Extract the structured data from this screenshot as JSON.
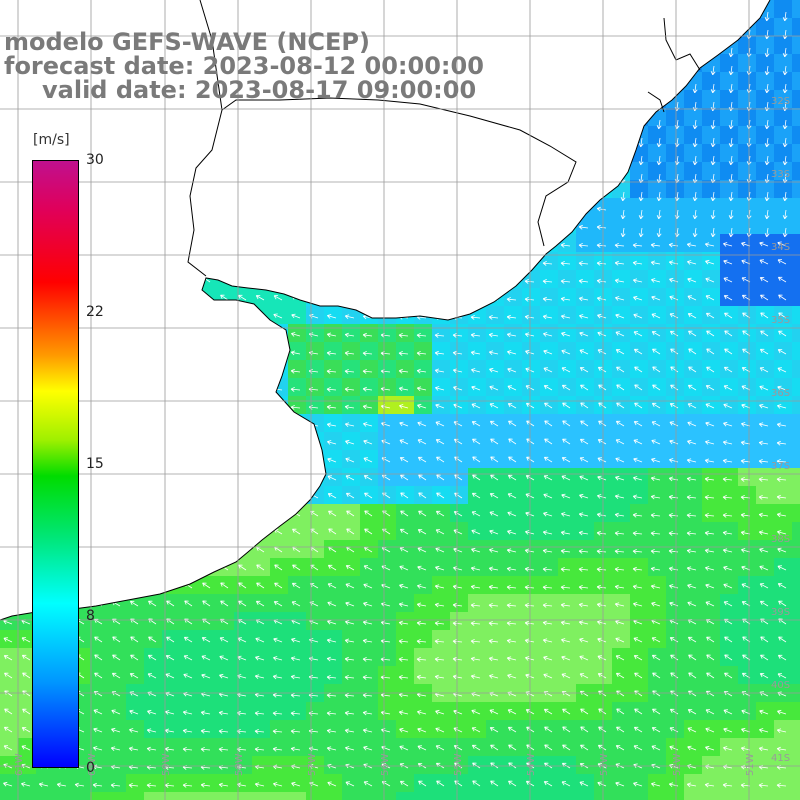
{
  "title": {
    "line1": "modelo GEFS-WAVE (NCEP)",
    "line2": "forecast date: 2023-08-12 00:00:00",
    "line3": "valid date: 2023-08-17 09:00:00"
  },
  "colorbar": {
    "unit": "[m/s]",
    "ticks": [
      "30",
      "22",
      "15",
      "8",
      "0"
    ],
    "colors": [
      "#0000ff",
      "#0096ff",
      "#00ffff",
      "#00e676",
      "#00dc00",
      "#a0f000",
      "#ffff00",
      "#ff9900",
      "#ff0000",
      "#e0005a",
      "#c0108e"
    ]
  },
  "colors": {
    "land": "#ffffff",
    "coast": "#000000",
    "grid": "#9a9a9a",
    "arrows": "#ffffff",
    "title": "#7a7a7a"
  },
  "map": {
    "latitude_labels": [
      "32S",
      "33S",
      "34S",
      "35S",
      "36S",
      "37S",
      "38S",
      "39S",
      "40S",
      "41S"
    ],
    "longitude_labels": [
      "61W",
      "60W",
      "59W",
      "58W",
      "57W",
      "56W",
      "55W",
      "54W",
      "53W",
      "52W",
      "51W"
    ]
  }
}
